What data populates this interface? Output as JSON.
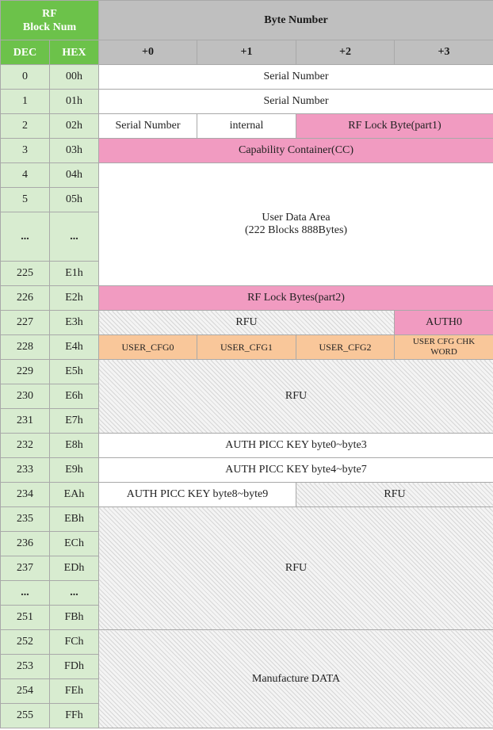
{
  "header": {
    "block_num_line1": "RF",
    "block_num_line2": "Block Num",
    "byte_number": "Byte Number",
    "dec": "DEC",
    "hex": "HEX",
    "byte_cols": [
      "+0",
      "+1",
      "+2",
      "+3"
    ]
  },
  "rows": [
    {
      "dec": "0",
      "hex": "00h"
    },
    {
      "dec": "1",
      "hex": "01h"
    },
    {
      "dec": "2",
      "hex": "02h"
    },
    {
      "dec": "3",
      "hex": "03h"
    },
    {
      "dec": "4",
      "hex": "04h"
    },
    {
      "dec": "5",
      "hex": "05h"
    },
    {
      "dec": "...",
      "hex": "..."
    },
    {
      "dec": "225",
      "hex": "E1h"
    },
    {
      "dec": "226",
      "hex": "E2h"
    },
    {
      "dec": "227",
      "hex": "E3h"
    },
    {
      "dec": "228",
      "hex": "E4h"
    },
    {
      "dec": "229",
      "hex": "E5h"
    },
    {
      "dec": "230",
      "hex": "E6h"
    },
    {
      "dec": "231",
      "hex": "E7h"
    },
    {
      "dec": "232",
      "hex": "E8h"
    },
    {
      "dec": "233",
      "hex": "E9h"
    },
    {
      "dec": "234",
      "hex": "EAh"
    },
    {
      "dec": "235",
      "hex": "EBh"
    },
    {
      "dec": "236",
      "hex": "ECh"
    },
    {
      "dec": "237",
      "hex": "EDh"
    },
    {
      "dec": "...",
      "hex": "..."
    },
    {
      "dec": "251",
      "hex": "FBh"
    },
    {
      "dec": "252",
      "hex": "FCh"
    },
    {
      "dec": "253",
      "hex": "FDh"
    },
    {
      "dec": "254",
      "hex": "FEh"
    },
    {
      "dec": "255",
      "hex": "FFh"
    }
  ],
  "cells": {
    "serial_number_0": "Serial Number",
    "serial_number_1": "Serial Number",
    "serial_number_2": "Serial Number",
    "internal": "internal",
    "rf_lock_part1": "RF Lock Byte(part1)",
    "capability_container": "Capability Container(CC)",
    "user_data_area_line1": "User Data Area",
    "user_data_area_line2": "(222 Blocks 888Bytes)",
    "rf_lock_part2": "RF Lock Bytes(part2)",
    "rfu_227": "RFU",
    "auth0": "AUTH0",
    "user_cfg0": "USER_CFG0",
    "user_cfg1": "USER_CFG1",
    "user_cfg2": "USER_CFG2",
    "user_cfg_chk_line1": "USER CFG CHK",
    "user_cfg_chk_line2": "WORD",
    "rfu_229_231": "RFU",
    "auth_picc_key_0_3": "AUTH PICC KEY byte0~byte3",
    "auth_picc_key_4_7": "AUTH PICC KEY byte4~byte7",
    "auth_picc_key_8_9": "AUTH PICC KEY byte8~byte9",
    "rfu_234": "RFU",
    "rfu_235_251": "RFU",
    "manufacture_data": "Manufacture DATA"
  },
  "colors": {
    "header_green": "#6cc24a",
    "header_gray": "#bfbfbf",
    "index_green": "#d8ecd0",
    "pink": "#f19bc1",
    "orange": "#f9c79a"
  }
}
